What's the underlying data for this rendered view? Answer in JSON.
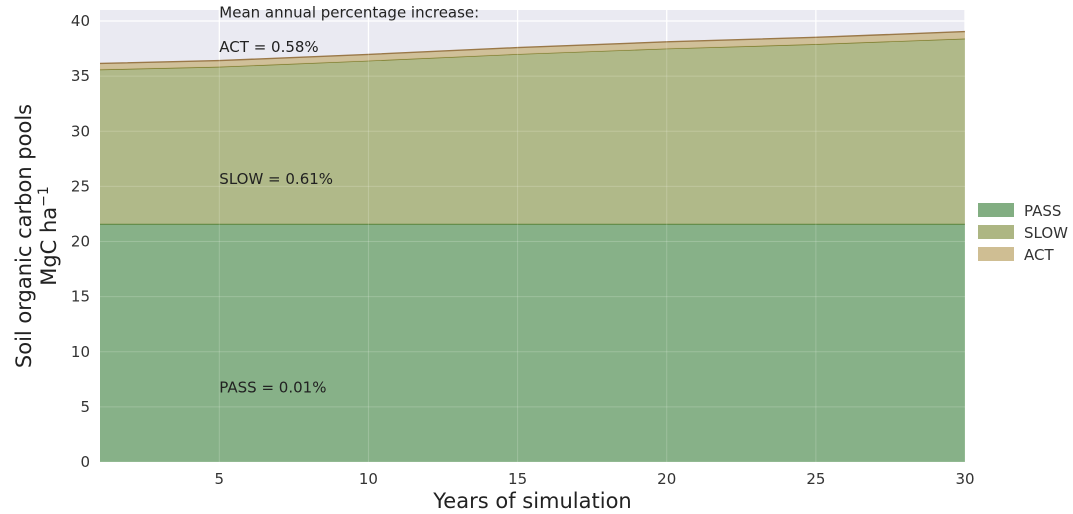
{
  "chart_data": {
    "type": "area",
    "stacked": true,
    "xlabel": "Years of simulation",
    "ylabel_line1": "Soil organic carbon pools",
    "ylabel_line2": "MgC ha",
    "ylabel_sup": "−1",
    "xlim": [
      1,
      30
    ],
    "ylim": [
      0,
      41
    ],
    "xticks": [
      5,
      10,
      15,
      20,
      25,
      30
    ],
    "yticks": [
      0,
      5,
      10,
      15,
      20,
      25,
      30,
      35,
      40
    ],
    "grid": true,
    "legend_position": "right",
    "x": [
      1,
      5,
      10,
      15,
      20,
      25,
      30
    ],
    "series": [
      {
        "name": "PASS",
        "color": "#82ae82",
        "line_color": "#4f7a2a",
        "values": [
          21.6,
          21.6,
          21.6,
          21.6,
          21.6,
          21.6,
          21.6
        ]
      },
      {
        "name": "SLOW",
        "color": "#adb683",
        "line_color": "#7b7a28",
        "values": [
          14.0,
          14.25,
          14.8,
          15.4,
          15.9,
          16.3,
          16.8
        ]
      },
      {
        "name": "ACT",
        "color": "#cfbe93",
        "line_color": "#9a7848",
        "values": [
          0.55,
          0.56,
          0.57,
          0.59,
          0.61,
          0.62,
          0.64
        ]
      }
    ],
    "annotations": [
      {
        "id": "title",
        "text": "Mean annual percentage increase:",
        "x": 5,
        "y": 40.3
      },
      {
        "id": "act",
        "text": "ACT = 0.58%",
        "x": 5,
        "y": 37.2
      },
      {
        "id": "slow",
        "text": "SLOW = 0.61%",
        "x": 5,
        "y": 25.2
      },
      {
        "id": "pass",
        "text": "PASS = 0.01%",
        "x": 5,
        "y": 6.3
      }
    ],
    "legend_order": [
      "PASS",
      "SLOW",
      "ACT"
    ],
    "background": "#eaeaf2",
    "grid_color": "#ffffff"
  }
}
